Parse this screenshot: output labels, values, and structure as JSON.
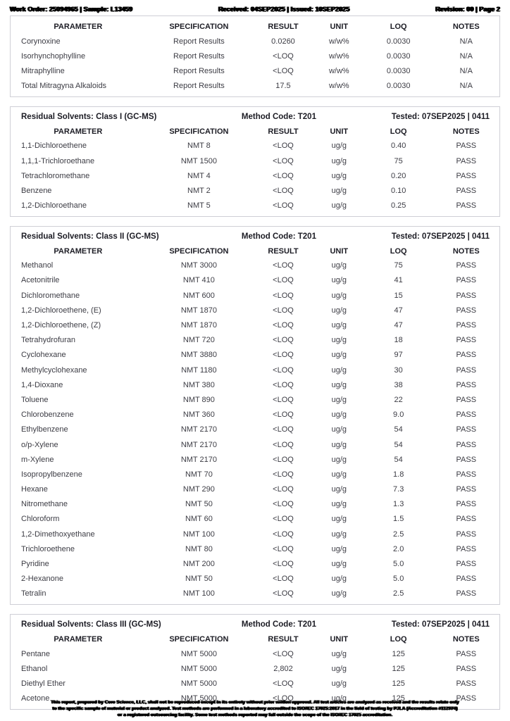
{
  "header": {
    "left": "Work Order: 25094965 | Sample: L13459",
    "center": "Received: 04SEP2025 | Issued: 10SEP2025",
    "right": "Revision: 00 | Page 2"
  },
  "table_columns": [
    "PARAMETER",
    "SPECIFICATION",
    "RESULT",
    "UNIT",
    "LOQ",
    "NOTES"
  ],
  "sections": [
    {
      "title": "",
      "method_code": "",
      "tested": "",
      "rows": [
        [
          "Corynoxine",
          "Report Results",
          "0.0260",
          "w/w%",
          "0.0030",
          "N/A"
        ],
        [
          "Isorhynchophylline",
          "Report Results",
          "<LOQ",
          "w/w%",
          "0.0030",
          "N/A"
        ],
        [
          "Mitraphylline",
          "Report Results",
          "<LOQ",
          "w/w%",
          "0.0030",
          "N/A"
        ],
        [
          "Total Mitragyna Alkaloids",
          "Report Results",
          "17.5",
          "w/w%",
          "0.0030",
          "N/A"
        ]
      ]
    },
    {
      "title": "Residual Solvents: Class I (GC-MS)",
      "method_code": "Method Code: T201",
      "tested": "Tested: 07SEP2025 | 0411",
      "rows": [
        [
          "1,1-Dichloroethene",
          "NMT 8",
          "<LOQ",
          "ug/g",
          "0.40",
          "PASS"
        ],
        [
          "1,1,1-Trichloroethane",
          "NMT 1500",
          "<LOQ",
          "ug/g",
          "75",
          "PASS"
        ],
        [
          "Tetrachloromethane",
          "NMT 4",
          "<LOQ",
          "ug/g",
          "0.20",
          "PASS"
        ],
        [
          "Benzene",
          "NMT 2",
          "<LOQ",
          "ug/g",
          "0.10",
          "PASS"
        ],
        [
          "1,2-Dichloroethane",
          "NMT 5",
          "<LOQ",
          "ug/g",
          "0.25",
          "PASS"
        ]
      ]
    },
    {
      "title": "Residual Solvents: Class II (GC-MS)",
      "method_code": "Method Code: T201",
      "tested": "Tested: 07SEP2025 | 0411",
      "rows": [
        [
          "Methanol",
          "NMT 3000",
          "<LOQ",
          "ug/g",
          "75",
          "PASS"
        ],
        [
          "Acetonitrile",
          "NMT 410",
          "<LOQ",
          "ug/g",
          "41",
          "PASS"
        ],
        [
          "Dichloromethane",
          "NMT 600",
          "<LOQ",
          "ug/g",
          "15",
          "PASS"
        ],
        [
          "1,2-Dichloroethene, (E)",
          "NMT 1870",
          "<LOQ",
          "ug/g",
          "47",
          "PASS"
        ],
        [
          "1,2-Dichloroethene, (Z)",
          "NMT 1870",
          "<LOQ",
          "ug/g",
          "47",
          "PASS"
        ],
        [
          "Tetrahydrofuran",
          "NMT 720",
          "<LOQ",
          "ug/g",
          "18",
          "PASS"
        ],
        [
          "Cyclohexane",
          "NMT 3880",
          "<LOQ",
          "ug/g",
          "97",
          "PASS"
        ],
        [
          "Methylcyclohexane",
          "NMT 1180",
          "<LOQ",
          "ug/g",
          "30",
          "PASS"
        ],
        [
          "1,4-Dioxane",
          "NMT 380",
          "<LOQ",
          "ug/g",
          "38",
          "PASS"
        ],
        [
          "Toluene",
          "NMT 890",
          "<LOQ",
          "ug/g",
          "22",
          "PASS"
        ],
        [
          "Chlorobenzene",
          "NMT 360",
          "<LOQ",
          "ug/g",
          "9.0",
          "PASS"
        ],
        [
          "Ethylbenzene",
          "NMT 2170",
          "<LOQ",
          "ug/g",
          "54",
          "PASS"
        ],
        [
          "o/p-Xylene",
          "NMT 2170",
          "<LOQ",
          "ug/g",
          "54",
          "PASS"
        ],
        [
          "m-Xylene",
          "NMT 2170",
          "<LOQ",
          "ug/g",
          "54",
          "PASS"
        ],
        [
          "Isopropylbenzene",
          "NMT 70",
          "<LOQ",
          "ug/g",
          "1.8",
          "PASS"
        ],
        [
          "Hexane",
          "NMT 290",
          "<LOQ",
          "ug/g",
          "7.3",
          "PASS"
        ],
        [
          "Nitromethane",
          "NMT 50",
          "<LOQ",
          "ug/g",
          "1.3",
          "PASS"
        ],
        [
          "Chloroform",
          "NMT 60",
          "<LOQ",
          "ug/g",
          "1.5",
          "PASS"
        ],
        [
          "1,2-Dimethoxyethane",
          "NMT 100",
          "<LOQ",
          "ug/g",
          "2.5",
          "PASS"
        ],
        [
          "Trichloroethene",
          "NMT 80",
          "<LOQ",
          "ug/g",
          "2.0",
          "PASS"
        ],
        [
          "Pyridine",
          "NMT 200",
          "<LOQ",
          "ug/g",
          "5.0",
          "PASS"
        ],
        [
          "2-Hexanone",
          "NMT 50",
          "<LOQ",
          "ug/g",
          "5.0",
          "PASS"
        ],
        [
          "Tetralin",
          "NMT 100",
          "<LOQ",
          "ug/g",
          "2.5",
          "PASS"
        ]
      ]
    },
    {
      "title": "Residual Solvents: Class III (GC-MS)",
      "method_code": "Method Code: T201",
      "tested": "Tested: 07SEP2025 | 0411",
      "rows": [
        [
          "Pentane",
          "NMT 5000",
          "<LOQ",
          "ug/g",
          "125",
          "PASS"
        ],
        [
          "Ethanol",
          "NMT 5000",
          "2,802",
          "ug/g",
          "125",
          "PASS"
        ],
        [
          "Diethyl Ether",
          "NMT 5000",
          "<LOQ",
          "ug/g",
          "125",
          "PASS"
        ],
        [
          "Acetone",
          "NMT 5000",
          "<LOQ",
          "ug/g",
          "125",
          "PASS"
        ]
      ]
    }
  ],
  "footer": {
    "lines": [
      "This report, prepared by Core Science, LLC, shall not be reproduced except in its entirety without prior written approval. All test articles are analyzed as received and the results relate only",
      "to the specific sample of material or product analyzed. Test methods are performed in a laboratory accredited to ISO/IEC 17025:2017 in the field of testing by PJLA (Accreditation #112974)",
      "or a registered outsourcing facility. Some test methods reported may fall outside the scope of the ISO/IEC 17025 accreditation."
    ]
  }
}
